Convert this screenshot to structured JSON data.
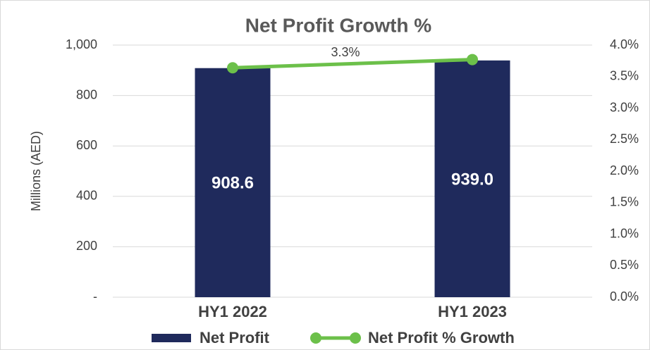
{
  "chart_data": {
    "type": "bar",
    "title": "Net Profit Growth %",
    "y_label": "Millions (AED)",
    "categories": [
      "HY1 2022",
      "HY1 2023"
    ],
    "series": [
      {
        "name": "Net Profit",
        "color": "#1f2a5c",
        "type": "bar",
        "values": [
          908.6,
          939.0
        ],
        "value_labels": [
          "908.6",
          "939.0"
        ]
      },
      {
        "name": "Net Profit % Growth",
        "color": "#6cc04a",
        "type": "line",
        "axis": "y2",
        "values": [
          3.64,
          3.77
        ]
      }
    ],
    "annotations": [
      "3.3%"
    ],
    "ylim": [
      0,
      1000
    ],
    "yticks": [
      {
        "value": 0,
        "label": "-"
      },
      200,
      400,
      600,
      800,
      {
        "value": 1000,
        "label": "1,000"
      }
    ],
    "y2lim": [
      0,
      4
    ],
    "y2ticks": [
      {
        "value": 0,
        "label": "0.0%"
      },
      {
        "value": 0.5,
        "label": "0.5%"
      },
      {
        "value": 1,
        "label": "1.0%"
      },
      {
        "value": 1.5,
        "label": "1.5%"
      },
      {
        "value": 2,
        "label": "2.0%"
      },
      {
        "value": 2.5,
        "label": "2.5%"
      },
      {
        "value": 3,
        "label": "3.0%"
      },
      {
        "value": 3.5,
        "label": "3.5%"
      },
      {
        "value": 4,
        "label": "4.0%"
      }
    ],
    "grid": true,
    "legend": "bottom"
  }
}
